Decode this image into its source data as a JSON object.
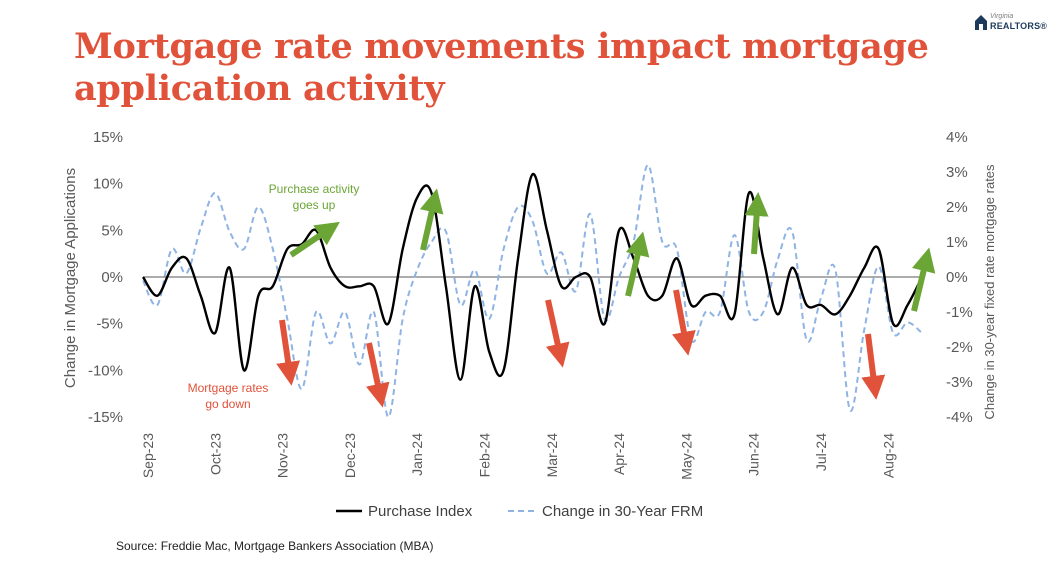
{
  "title": "Mortgage rate movements impact mortgage application activity",
  "logo": {
    "line1": "Virginia",
    "line2": "REALTORS®"
  },
  "source": "Source: Freddie Mac, Mortgage Bankers Association (MBA)",
  "colors": {
    "title": "#e0523a",
    "purchase_index": "#000000",
    "frm_change": "#8fb4e3",
    "arrow_up": "#6aa535",
    "arrow_down": "#e0523a"
  },
  "annotations": {
    "up_line1": "Purchase activity",
    "up_line2": "goes up",
    "down_line1": "Mortgage rates",
    "down_line2": "go down"
  },
  "chart_data": {
    "type": "line",
    "title": "Mortgage rate movements impact mortgage application activity",
    "ylabel": "Change in Mortgage Applications",
    "y2label": "Change in 30-year fixed rate mortgage rates",
    "ylim": [
      -15,
      15
    ],
    "y2lim": [
      -4,
      4
    ],
    "yticks": [
      "15%",
      "10%",
      "5%",
      "0%",
      "-5%",
      "-10%",
      "-15%"
    ],
    "y2ticks": [
      "4%",
      "3%",
      "2%",
      "1%",
      "0%",
      "-1%",
      "-2%",
      "-3%",
      "-4%"
    ],
    "xlabels": [
      "Sep-23",
      "Oct-23",
      "Nov-23",
      "Dec-23",
      "Jan-24",
      "Feb-24",
      "Mar-24",
      "Apr-24",
      "May-24",
      "Jun-24",
      "Jul-24",
      "Aug-24"
    ],
    "grid": false,
    "legend_position": "bottom",
    "series": [
      {
        "name": "Purchase Index",
        "axis": "left",
        "style": "solid",
        "values": [
          0,
          -2,
          1,
          2,
          -2,
          -6,
          1,
          -10,
          -2,
          -1,
          3,
          3.5,
          5,
          1,
          -1,
          -1,
          -1,
          -5,
          3,
          8.5,
          9,
          -1,
          -11,
          -1,
          -8,
          -10,
          2,
          11,
          5,
          -1,
          0,
          0,
          -5,
          5,
          2,
          -2,
          -2,
          2,
          -3,
          -2,
          -2,
          -4,
          9,
          2,
          -4,
          1,
          -3,
          -3,
          -4,
          -2,
          1,
          3,
          -5,
          -3,
          0
        ]
      },
      {
        "name": "Change in 30-Year FRM",
        "axis": "right",
        "style": "dashed",
        "values": [
          -0.1,
          -0.8,
          0.8,
          0.1,
          1.4,
          2.4,
          1.3,
          0.8,
          2.0,
          0.8,
          -1.2,
          -3.2,
          -1.0,
          -1.9,
          -1.0,
          -2.5,
          -1.0,
          -4.0,
          -1.2,
          0.2,
          1.0,
          1.3,
          -0.8,
          0.2,
          -1.2,
          0.8,
          2.0,
          1.6,
          0.1,
          0.7,
          -0.4,
          1.8,
          -1.2,
          0.0,
          1.0,
          3.2,
          1.0,
          0.8,
          -1.8,
          -1.0,
          -1.0,
          1.2,
          -1.0,
          -1.0,
          0.5,
          1.3,
          -1.8,
          -0.6,
          0.2,
          -3.8,
          -1.5,
          0.3,
          -1.6,
          -1.3,
          -1.6
        ]
      }
    ]
  }
}
